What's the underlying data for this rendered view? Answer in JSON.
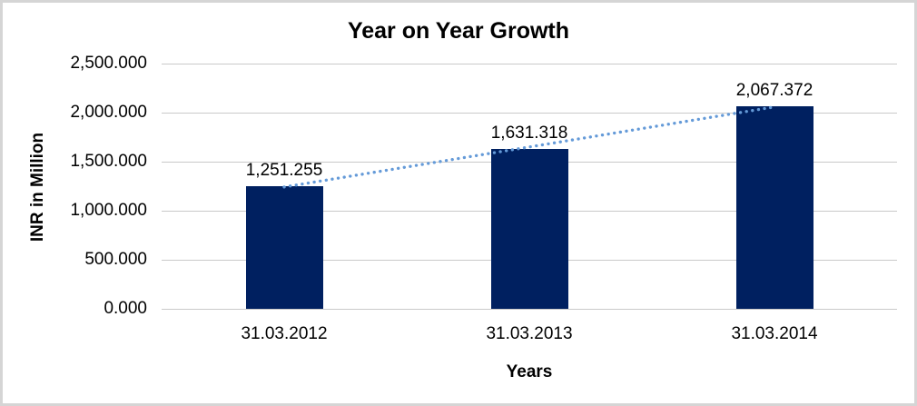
{
  "frame": {
    "background_color": "#ffffff",
    "border_color": "#d5d5d5"
  },
  "chart_data": {
    "type": "bar",
    "title": "Year on Year Growth",
    "xlabel": "Years",
    "ylabel": "INR in Million",
    "categories": [
      "31.03.2012",
      "31.03.2013",
      "31.03.2014"
    ],
    "values": [
      1251.255,
      1631.318,
      2067.372
    ],
    "data_labels": [
      "1,251.255",
      "1,631.318",
      "2,067.372"
    ],
    "ylim": [
      0,
      2500
    ],
    "ytick_step": 500,
    "ytick_labels": [
      "0.000",
      "500.000",
      "1,000.000",
      "1,500.000",
      "2,000.000",
      "2,500.000"
    ],
    "grid": true,
    "legend": "none",
    "bar_color": "#002060",
    "gridline_color": "#c9c9c9",
    "trendline": {
      "type": "linear",
      "style": "dotted",
      "color": "#649ad8"
    }
  }
}
